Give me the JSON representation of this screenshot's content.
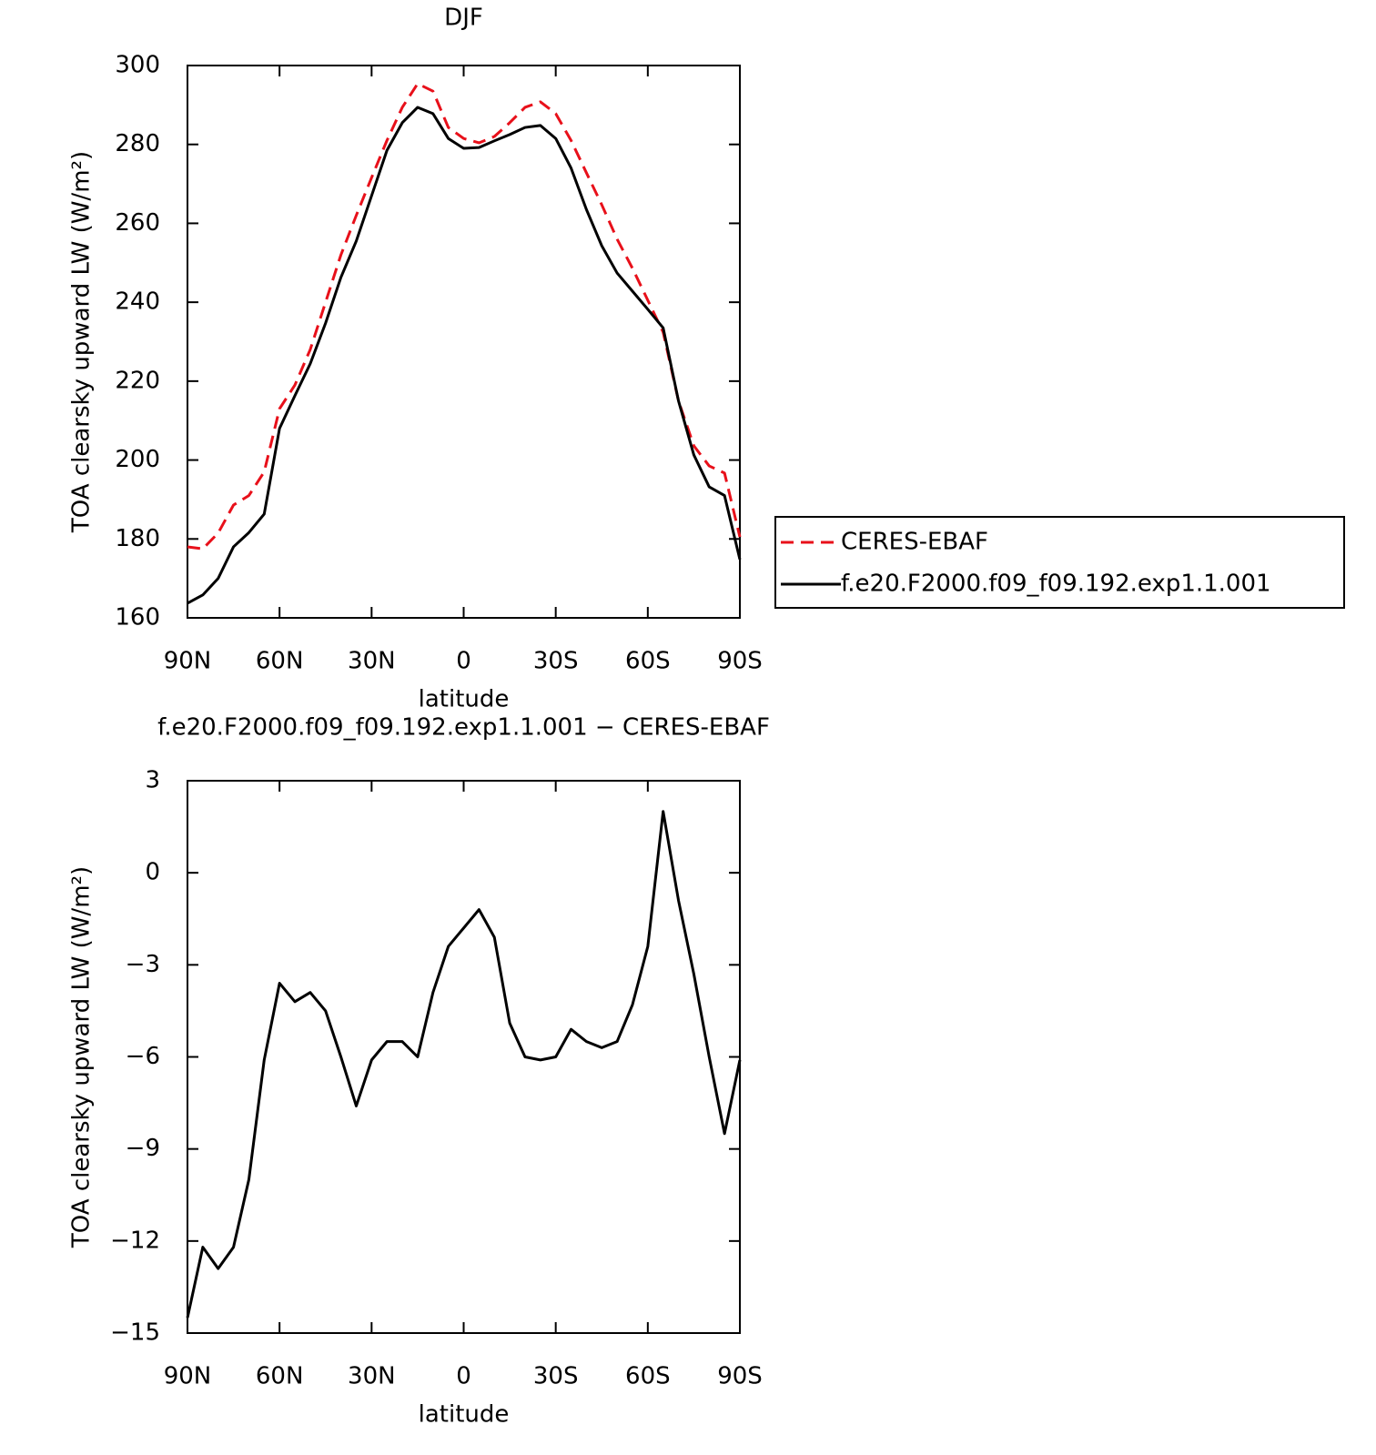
{
  "chart_data": [
    {
      "type": "line",
      "title": "DJF",
      "xlabel": "latitude",
      "ylabel": "TOA clearsky upward LW (W/m²)",
      "x": [
        90,
        85,
        80,
        75,
        70,
        65,
        60,
        55,
        50,
        45,
        40,
        35,
        30,
        25,
        20,
        15,
        10,
        5,
        0,
        -5,
        -10,
        -15,
        -20,
        -25,
        -30,
        -35,
        -40,
        -45,
        -50,
        -55,
        -60,
        -65,
        -70,
        -75,
        -80,
        -85,
        -90
      ],
      "xlim": [
        90,
        -90
      ],
      "xticks": [
        {
          "value": 90,
          "label": "90N"
        },
        {
          "value": 60,
          "label": "60N"
        },
        {
          "value": 30,
          "label": "30N"
        },
        0,
        {
          "value": -30,
          "label": "30S"
        },
        {
          "value": -60,
          "label": "60S"
        },
        {
          "value": -90,
          "label": "90S"
        }
      ],
      "ylim": [
        160,
        300
      ],
      "yticks": [
        160,
        180,
        200,
        220,
        240,
        260,
        280,
        300
      ],
      "legend": "right",
      "series": [
        {
          "name": "CERES-EBAF",
          "color": "#e8101a",
          "dashed": true,
          "values": [
            178,
            177.5,
            181.5,
            188.6,
            191,
            197,
            213,
            219,
            228,
            240,
            252,
            262,
            271.6,
            281,
            289.4,
            295.4,
            293.5,
            284.3,
            281.5,
            280.4,
            282,
            285.5,
            289.4,
            290.8,
            287.8,
            281,
            272.8,
            264.7,
            256,
            248.6,
            240.5,
            232.4,
            215,
            203.6,
            198.5,
            196.7,
            180.5
          ]
        },
        {
          "name": "f.e20.F2000.f09_f09.192.exp1.1.001",
          "color": "#000000",
          "dashed": false,
          "values": [
            163.7,
            165.8,
            170,
            178,
            181.6,
            186.3,
            208,
            216.3,
            224.4,
            234.7,
            246.3,
            255.5,
            267,
            278.5,
            285.5,
            289.4,
            287.8,
            281.5,
            279,
            279.2,
            280.9,
            282.5,
            284.3,
            284.8,
            281.5,
            274,
            263.5,
            254.3,
            247.4,
            242.8,
            238.2,
            233.5,
            215,
            201.3,
            193.2,
            191,
            174.8
          ]
        }
      ]
    },
    {
      "type": "line",
      "title": "f.e20.F2000.f09_f09.192.exp1.1.001 − CERES-EBAF",
      "xlabel": "latitude",
      "ylabel": "TOA clearsky upward LW (W/m²)",
      "x": [
        90,
        85,
        80,
        75,
        70,
        65,
        60,
        55,
        50,
        45,
        40,
        35,
        30,
        25,
        20,
        15,
        10,
        5,
        0,
        -5,
        -10,
        -15,
        -20,
        -25,
        -30,
        -35,
        -40,
        -45,
        -50,
        -55,
        -60,
        -65,
        -70,
        -75,
        -80,
        -85,
        -90
      ],
      "xlim": [
        90,
        -90
      ],
      "xticks": [
        {
          "value": 90,
          "label": "90N"
        },
        {
          "value": 60,
          "label": "60N"
        },
        {
          "value": 30,
          "label": "30N"
        },
        0,
        {
          "value": -30,
          "label": "30S"
        },
        {
          "value": -60,
          "label": "60S"
        },
        {
          "value": -90,
          "label": "90S"
        }
      ],
      "ylim": [
        -15,
        3
      ],
      "yticks": [
        {
          "value": -15,
          "label": "−15"
        },
        {
          "value": -12,
          "label": "−12"
        },
        {
          "value": -9,
          "label": "−9"
        },
        {
          "value": -6,
          "label": "−6"
        },
        {
          "value": -3,
          "label": "−3"
        },
        0,
        3
      ],
      "color": "#000000",
      "values": [
        -14.5,
        -12.2,
        -12.9,
        -12.2,
        -10,
        -6.1,
        -3.6,
        -4.2,
        -3.9,
        -4.5,
        -6,
        -7.6,
        -6.1,
        -5.5,
        -5.5,
        -6,
        -3.9,
        -2.4,
        -1.8,
        -1.2,
        -2.1,
        -4.9,
        -6,
        -6.1,
        -6,
        -5.1,
        -5.5,
        -5.7,
        -5.5,
        -4.3,
        -2.4,
        2,
        -0.9,
        -3.3,
        -6,
        -8.5,
        -6.1
      ]
    }
  ]
}
